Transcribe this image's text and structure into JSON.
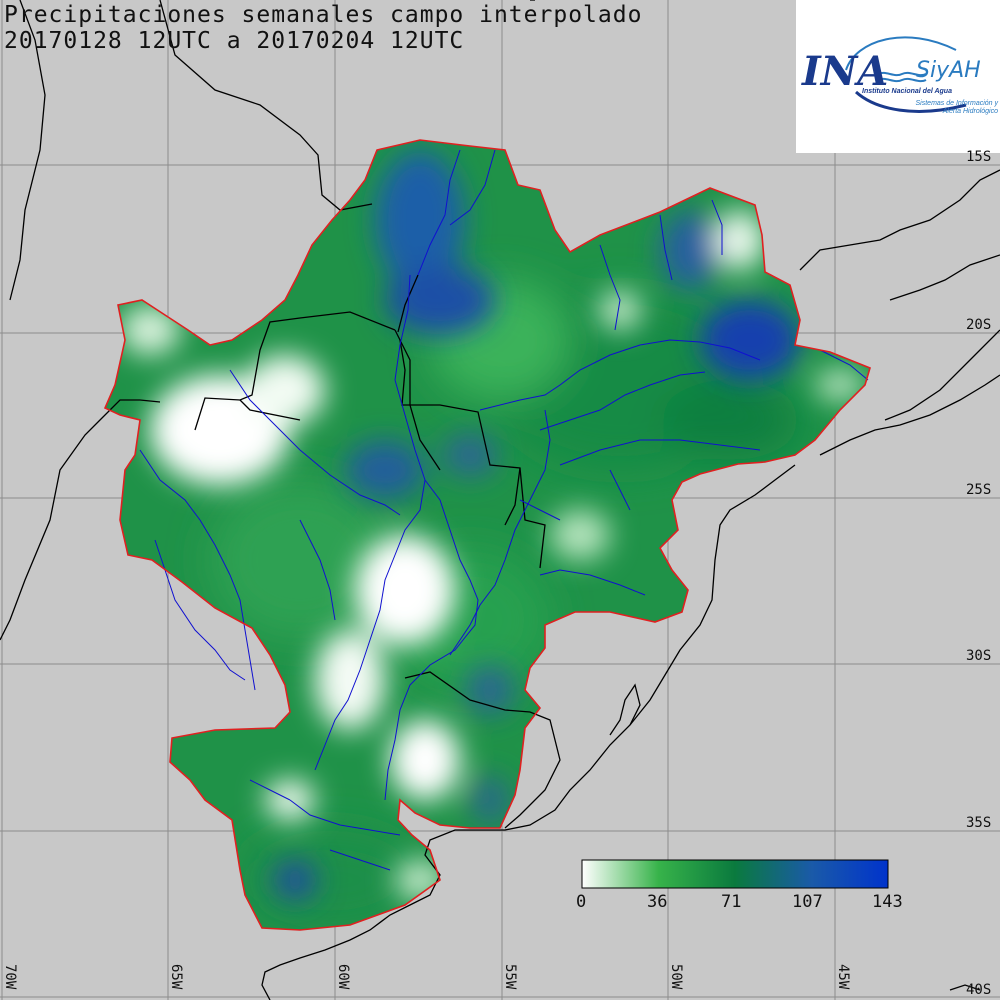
{
  "title": {
    "line1": "Precipitaciones semanales campo interpolado",
    "line2": "20170128 12UTC a 20170204 12UTC"
  },
  "logo": {
    "main": "INA",
    "sub": "SiyAH",
    "institute": "Instituto Nacional del Agua",
    "system": "Sistemas de Información y Alerta Hidrológico"
  },
  "grid": {
    "latitudes": [
      "15S",
      "20S",
      "25S",
      "30S",
      "35S",
      "40S"
    ],
    "longitudes": [
      "70W",
      "65W",
      "60W",
      "55W",
      "50W",
      "45W"
    ]
  },
  "colorbar": {
    "ticks": [
      "0",
      "36",
      "71",
      "107",
      "143"
    ],
    "values": [
      0,
      36,
      71,
      107,
      143
    ],
    "colors": [
      "#ffffff",
      "#37b34a",
      "#0a7a3e",
      "#1a5aa8",
      "#0033cc"
    ]
  },
  "colors": {
    "background": "#c8c8c8",
    "basin_outline": "#e02020",
    "rivers": "#1010d0",
    "borders": "#000000",
    "grid": "#8c8c8c"
  }
}
